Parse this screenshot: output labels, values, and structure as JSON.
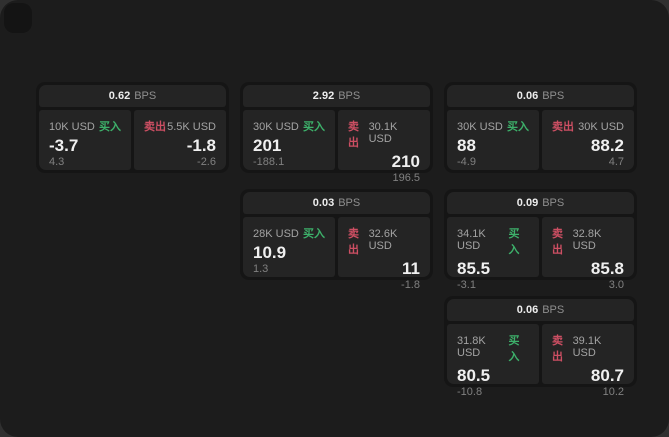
{
  "page": {
    "background": "#1c1c1c",
    "card_background": "#242424",
    "accent_green": "#3db06a",
    "accent_red": "#cd4f63"
  },
  "labels": {
    "bps_unit": "BPS",
    "buy": "买入",
    "sell": "卖出"
  },
  "cards": [
    {
      "bps": "0.62",
      "buy": {
        "size": "10K USD",
        "price": "-3.7",
        "delta": "4.3"
      },
      "sell": {
        "size": "5.5K USD",
        "price": "-1.8",
        "delta": "-2.6"
      }
    },
    {
      "bps": "2.92",
      "buy": {
        "size": "30K USD",
        "price": "201",
        "delta": "-188.1"
      },
      "sell": {
        "size": "30.1K USD",
        "price": "210",
        "delta": "196.5"
      }
    },
    {
      "bps": "0.06",
      "buy": {
        "size": "30K USD",
        "price": "88",
        "delta": "-4.9"
      },
      "sell": {
        "size": "30K USD",
        "price": "88.2",
        "delta": "4.7"
      }
    },
    {
      "bps": "0.03",
      "buy": {
        "size": "28K USD",
        "price": "10.9",
        "delta": "1.3"
      },
      "sell": {
        "size": "32.6K USD",
        "price": "11",
        "delta": "-1.8"
      }
    },
    {
      "bps": "0.09",
      "buy": {
        "size": "34.1K USD",
        "price": "85.5",
        "delta": "-3.1"
      },
      "sell": {
        "size": "32.8K USD",
        "price": "85.8",
        "delta": "3.0"
      }
    },
    {
      "bps": "0.06",
      "buy": {
        "size": "31.8K USD",
        "price": "80.5",
        "delta": "-10.8"
      },
      "sell": {
        "size": "39.1K USD",
        "price": "80.7",
        "delta": "10.2"
      }
    }
  ]
}
